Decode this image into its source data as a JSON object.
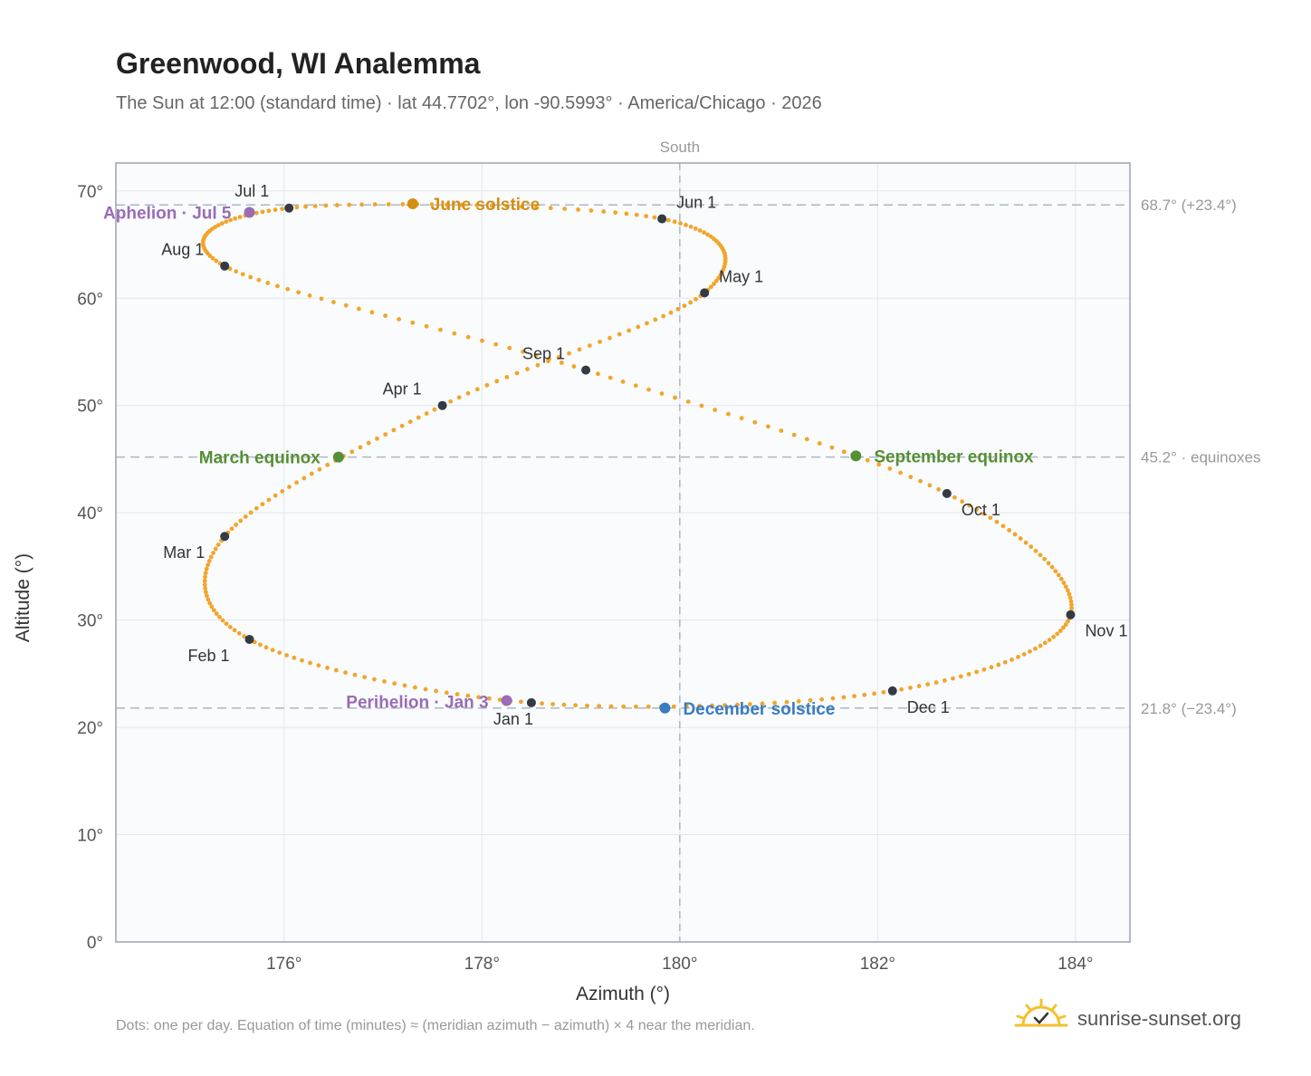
{
  "header": {
    "title": "Greenwood, WI Analemma",
    "subtitle": "The Sun at 12:00 (standard time) · lat 44.7702°, lon -90.5993° · America/Chicago · 2026"
  },
  "footer": {
    "note": "Dots: one per day. Equation of time (minutes) ≈ (meridian azimuth − azimuth) × 4 near the meridian.",
    "brand": "sunrise-sunset.org"
  },
  "colors": {
    "curve": "#f2a52a",
    "month_dot": "#333a44",
    "june": "#d48f12",
    "december": "#3a7cc0",
    "equinox": "#568f35",
    "apsis": "#9a6cb5",
    "plot_bg": "#f9fbfd",
    "grid": "#e2e8ee",
    "ref_line": "#aab8c2",
    "axis": "#9aa4b2"
  },
  "chart_data": {
    "type": "scatter",
    "xlabel": "Azimuth (°)",
    "ylabel": "Altitude (°)",
    "xlim": [
      174.3,
      184.55
    ],
    "ylim": [
      0,
      72.6
    ],
    "x_ticks": [
      176,
      178,
      180,
      182,
      184
    ],
    "x_tick_labels": [
      "176°",
      "178°",
      "180°",
      "182°",
      "184°"
    ],
    "y_ticks": [
      0,
      10,
      20,
      30,
      40,
      50,
      60,
      70
    ],
    "y_tick_labels": [
      "0°",
      "10°",
      "20°",
      "30°",
      "40°",
      "50°",
      "60°",
      "70°"
    ],
    "grid": true,
    "meridian": {
      "azimuth": 180,
      "label": "South"
    },
    "reference_lines": [
      {
        "altitude": 68.7,
        "label": "68.7° (+23.4°)"
      },
      {
        "altitude": 45.2,
        "label": "45.2° · equinoxes"
      },
      {
        "altitude": 21.8,
        "label": "21.8° (−23.4°)"
      }
    ],
    "analemma_anchors": [
      {
        "day": 1,
        "az": 178.5,
        "alt": 22.3
      },
      {
        "day": 32,
        "az": 175.65,
        "alt": 28.2
      },
      {
        "day": 60,
        "az": 175.4,
        "alt": 37.8
      },
      {
        "day": 91,
        "az": 177.6,
        "alt": 50.0
      },
      {
        "day": 121,
        "az": 180.25,
        "alt": 60.5
      },
      {
        "day": 152,
        "az": 179.82,
        "alt": 67.4
      },
      {
        "day": 182,
        "az": 176.05,
        "alt": 68.4
      },
      {
        "day": 213,
        "az": 175.4,
        "alt": 63.0
      },
      {
        "day": 244,
        "az": 179.05,
        "alt": 53.3
      },
      {
        "day": 274,
        "az": 182.7,
        "alt": 41.8
      },
      {
        "day": 305,
        "az": 183.95,
        "alt": 30.5
      },
      {
        "day": 335,
        "az": 182.15,
        "alt": 23.4
      }
    ],
    "month_markers": [
      {
        "label": "Jan 1",
        "az": 178.5,
        "alt": 22.3
      },
      {
        "label": "Feb 1",
        "az": 175.65,
        "alt": 28.2
      },
      {
        "label": "Mar 1",
        "az": 175.4,
        "alt": 37.8
      },
      {
        "label": "Apr 1",
        "az": 177.6,
        "alt": 50.0
      },
      {
        "label": "May 1",
        "az": 180.25,
        "alt": 60.5
      },
      {
        "label": "Jun 1",
        "az": 179.82,
        "alt": 67.4
      },
      {
        "label": "Jul 1",
        "az": 176.05,
        "alt": 68.4
      },
      {
        "label": "Aug 1",
        "az": 175.4,
        "alt": 63.0
      },
      {
        "label": "Sep 1",
        "az": 179.05,
        "alt": 53.3
      },
      {
        "label": "Oct 1",
        "az": 182.7,
        "alt": 41.8
      },
      {
        "label": "Nov 1",
        "az": 183.95,
        "alt": 30.5
      },
      {
        "label": "Dec 1",
        "az": 182.15,
        "alt": 23.4
      }
    ],
    "events": [
      {
        "label": "June solstice",
        "az": 177.3,
        "alt": 68.8,
        "color_key": "june"
      },
      {
        "label": "December solstice",
        "az": 179.85,
        "alt": 21.8,
        "color_key": "december"
      },
      {
        "label": "March equinox",
        "az": 176.55,
        "alt": 45.2,
        "color_key": "equinox"
      },
      {
        "label": "September equinox",
        "az": 181.78,
        "alt": 45.3,
        "color_key": "equinox"
      },
      {
        "label": "Aphelion · Jul 5",
        "az": 175.65,
        "alt": 68.0,
        "color_key": "apsis"
      },
      {
        "label": "Perihelion · Jan 3",
        "az": 178.25,
        "alt": 22.5,
        "color_key": "apsis"
      }
    ]
  }
}
